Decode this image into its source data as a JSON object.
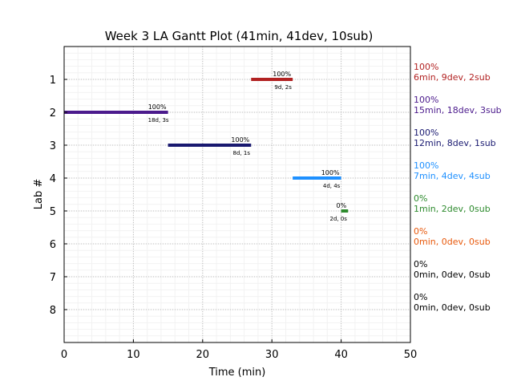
{
  "chart_data": {
    "type": "gantt",
    "title": "Week 3 LA Gantt Plot (41min, 41dev, 10sub)",
    "xlabel": "Time (min)",
    "ylabel": "Lab #",
    "xlim": [
      0,
      50
    ],
    "ylim": [
      9,
      0
    ],
    "x_ticks": [
      "0",
      "10",
      "20",
      "30",
      "40",
      "50"
    ],
    "x_tick_values": [
      0,
      10,
      20,
      30,
      40,
      50
    ],
    "y_ticks": [
      "1",
      "2",
      "3",
      "4",
      "5",
      "6",
      "7",
      "8"
    ],
    "y_tick_values": [
      1,
      2,
      3,
      4,
      5,
      6,
      7,
      8
    ],
    "grid": true,
    "labs": [
      {
        "lab": 1,
        "start": 27,
        "end": 33,
        "color": "#b22222",
        "bar_pct": "100%",
        "bar_sub": "9d, 2s",
        "side_pct": "100%",
        "side_stats": "6min, 9dev, 2sub"
      },
      {
        "lab": 2,
        "start": 0,
        "end": 15,
        "color": "#4b1a8c",
        "bar_pct": "100%",
        "bar_sub": "18d, 3s",
        "side_pct": "100%",
        "side_stats": "15min, 18dev, 3sub"
      },
      {
        "lab": 3,
        "start": 15,
        "end": 27,
        "color": "#191970",
        "bar_pct": "100%",
        "bar_sub": "8d, 1s",
        "side_pct": "100%",
        "side_stats": "12min, 8dev, 1sub"
      },
      {
        "lab": 4,
        "start": 33,
        "end": 40,
        "color": "#1e90ff",
        "bar_pct": "100%",
        "bar_sub": "4d, 4s",
        "side_pct": "100%",
        "side_stats": "7min, 4dev, 4sub"
      },
      {
        "lab": 5,
        "start": 40,
        "end": 41,
        "color": "#2e8b2e",
        "bar_pct": "0%",
        "bar_sub": "2d, 0s",
        "side_pct": "0%",
        "side_stats": "1min, 2dev, 0sub"
      },
      {
        "lab": 6,
        "start": null,
        "end": null,
        "color": "#e8590c",
        "side_pct": "0%",
        "side_stats": "0min, 0dev, 0sub"
      },
      {
        "lab": 7,
        "start": null,
        "end": null,
        "color": "#000000",
        "side_pct": "0%",
        "side_stats": "0min, 0dev, 0sub"
      },
      {
        "lab": 8,
        "start": null,
        "end": null,
        "color": "#000000",
        "side_pct": "0%",
        "side_stats": "0min, 0dev, 0sub"
      }
    ]
  }
}
